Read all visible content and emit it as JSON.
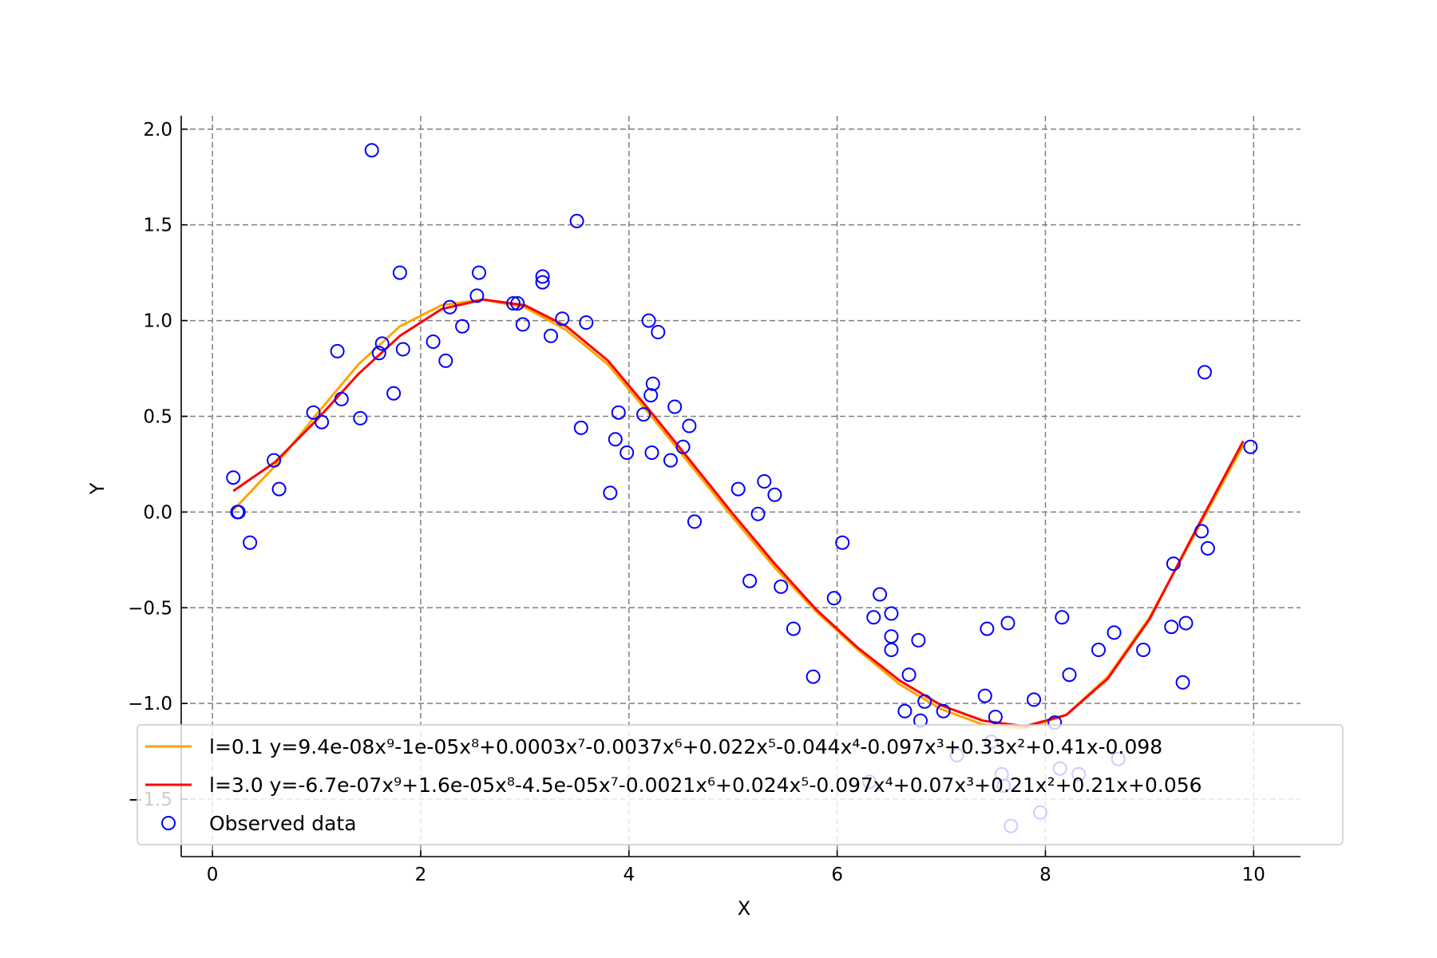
{
  "chart_data": {
    "type": "scatter",
    "title": "",
    "xlabel": "X",
    "ylabel": "Y",
    "xlim": [
      -0.3,
      10.45
    ],
    "ylim": [
      -1.8,
      2.07
    ],
    "xticks": [
      0,
      2,
      4,
      6,
      8,
      10
    ],
    "xtick_labels": [
      "0",
      "2",
      "4",
      "6",
      "8",
      "10"
    ],
    "yticks": [
      -1.5,
      -1.0,
      -0.5,
      0.0,
      0.5,
      1.0,
      1.5,
      2.0
    ],
    "ytick_labels": [
      "−1.5",
      "−1.0",
      "−0.5",
      "0.0",
      "0.5",
      "1.0",
      "1.5",
      "2.0"
    ],
    "grid": true,
    "legend_position": "lower-center",
    "series": [
      {
        "name": "l=0.1 y=9.4e-08x⁹-1e-05x⁸+0.0003x⁷-0.0037x⁶+0.022x⁵-0.044x⁴-0.097x³+0.33x²+0.41x-0.098",
        "kind": "line",
        "color": "#FFA500",
        "x": [
          0.2,
          0.6,
          1.0,
          1.4,
          1.8,
          2.2,
          2.6,
          3.0,
          3.4,
          3.8,
          4.2,
          4.6,
          5.0,
          5.4,
          5.8,
          6.2,
          6.6,
          7.0,
          7.4,
          7.8,
          8.2,
          8.6,
          9.0,
          9.4,
          9.9
        ],
        "y": [
          0.01,
          0.24,
          0.51,
          0.77,
          0.97,
          1.08,
          1.11,
          1.07,
          0.95,
          0.77,
          0.51,
          0.24,
          -0.03,
          -0.29,
          -0.52,
          -0.72,
          -0.9,
          -1.03,
          -1.11,
          -1.13,
          -1.06,
          -0.86,
          -0.55,
          -0.15,
          0.35
        ]
      },
      {
        "name": "l=3.0 y=-6.7e-07x⁹+1.6e-05x⁸-4.5e-05x⁷-0.0021x⁶+0.024x⁵-0.097x⁴+0.07x³+0.21x²+0.21x+0.056",
        "kind": "line",
        "color": "#FF0000",
        "x": [
          0.2,
          0.6,
          1.0,
          1.4,
          1.8,
          2.2,
          2.6,
          3.0,
          3.4,
          3.8,
          4.2,
          4.6,
          5.0,
          5.4,
          5.8,
          6.2,
          6.6,
          7.0,
          7.4,
          7.8,
          8.2,
          8.6,
          9.0,
          9.4,
          9.9
        ],
        "y": [
          0.11,
          0.26,
          0.48,
          0.72,
          0.92,
          1.06,
          1.11,
          1.08,
          0.97,
          0.79,
          0.53,
          0.26,
          -0.01,
          -0.27,
          -0.51,
          -0.71,
          -0.88,
          -1.01,
          -1.09,
          -1.12,
          -1.06,
          -0.87,
          -0.56,
          -0.14,
          0.37
        ]
      },
      {
        "name": "Observed data",
        "kind": "scatter",
        "color": "#0000FF",
        "points": [
          [
            0.2,
            0.18
          ],
          [
            0.24,
            0.0
          ],
          [
            0.25,
            0.0
          ],
          [
            0.36,
            -0.16
          ],
          [
            0.59,
            0.27
          ],
          [
            0.64,
            0.12
          ],
          [
            0.97,
            0.52
          ],
          [
            1.05,
            0.47
          ],
          [
            1.2,
            0.84
          ],
          [
            1.24,
            0.59
          ],
          [
            1.42,
            0.49
          ],
          [
            1.53,
            1.89
          ],
          [
            1.6,
            0.83
          ],
          [
            1.63,
            0.88
          ],
          [
            1.74,
            0.62
          ],
          [
            1.8,
            1.25
          ],
          [
            1.83,
            0.85
          ],
          [
            2.12,
            0.89
          ],
          [
            2.24,
            0.79
          ],
          [
            2.28,
            1.07
          ],
          [
            2.4,
            0.97
          ],
          [
            2.54,
            1.13
          ],
          [
            2.56,
            1.25
          ],
          [
            2.89,
            1.09
          ],
          [
            2.93,
            1.09
          ],
          [
            2.98,
            0.98
          ],
          [
            3.17,
            1.23
          ],
          [
            3.17,
            1.2
          ],
          [
            3.25,
            0.92
          ],
          [
            3.36,
            1.01
          ],
          [
            3.5,
            1.52
          ],
          [
            3.54,
            0.44
          ],
          [
            3.59,
            0.99
          ],
          [
            3.82,
            0.1
          ],
          [
            3.87,
            0.38
          ],
          [
            3.9,
            0.52
          ],
          [
            3.98,
            0.31
          ],
          [
            4.14,
            0.51
          ],
          [
            4.19,
            1.0
          ],
          [
            4.21,
            0.61
          ],
          [
            4.22,
            0.31
          ],
          [
            4.23,
            0.67
          ],
          [
            4.28,
            0.94
          ],
          [
            4.4,
            0.27
          ],
          [
            4.44,
            0.55
          ],
          [
            4.52,
            0.34
          ],
          [
            4.58,
            0.45
          ],
          [
            4.63,
            -0.05
          ],
          [
            5.05,
            0.12
          ],
          [
            5.16,
            -0.36
          ],
          [
            5.24,
            -0.01
          ],
          [
            5.3,
            0.16
          ],
          [
            5.4,
            0.09
          ],
          [
            5.46,
            -0.39
          ],
          [
            5.58,
            -0.61
          ],
          [
            5.77,
            -0.86
          ],
          [
            5.97,
            -0.45
          ],
          [
            6.05,
            -0.16
          ],
          [
            6.31,
            -1.41
          ],
          [
            6.35,
            -0.55
          ],
          [
            6.41,
            -0.43
          ],
          [
            6.52,
            -0.53
          ],
          [
            6.52,
            -0.65
          ],
          [
            6.52,
            -0.72
          ],
          [
            6.65,
            -1.04
          ],
          [
            6.69,
            -0.85
          ],
          [
            6.78,
            -0.67
          ],
          [
            6.8,
            -1.09
          ],
          [
            6.84,
            -0.99
          ],
          [
            7.02,
            -1.04
          ],
          [
            7.15,
            -1.27
          ],
          [
            7.42,
            -0.96
          ],
          [
            7.44,
            -0.61
          ],
          [
            7.48,
            -1.2
          ],
          [
            7.52,
            -1.07
          ],
          [
            7.58,
            -1.37
          ],
          [
            7.6,
            -1.43
          ],
          [
            7.64,
            -0.58
          ],
          [
            7.67,
            -1.64
          ],
          [
            7.89,
            -0.98
          ],
          [
            7.95,
            -1.57
          ],
          [
            8.09,
            -1.1
          ],
          [
            8.14,
            -1.34
          ],
          [
            8.16,
            -0.55
          ],
          [
            8.23,
            -0.85
          ],
          [
            8.32,
            -1.37
          ],
          [
            8.51,
            -0.72
          ],
          [
            8.66,
            -0.63
          ],
          [
            8.7,
            -1.29
          ],
          [
            8.94,
            -0.72
          ],
          [
            9.21,
            -0.6
          ],
          [
            9.23,
            -0.27
          ],
          [
            9.32,
            -0.89
          ],
          [
            9.35,
            -0.58
          ],
          [
            9.5,
            -0.1
          ],
          [
            9.53,
            0.73
          ],
          [
            9.56,
            -0.19
          ],
          [
            9.97,
            0.34
          ]
        ]
      }
    ]
  }
}
